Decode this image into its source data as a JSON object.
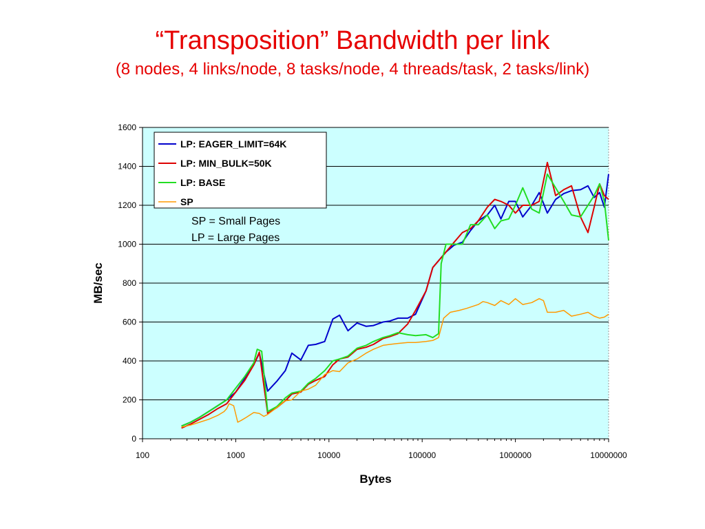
{
  "slide": {
    "title": "“Transposition” Bandwidth per link",
    "subtitle": "(8 nodes, 4 links/node, 8 tasks/node, 4 threads/task, 2 tasks/link)"
  },
  "chart_data": {
    "type": "line",
    "title": "",
    "xlabel": "Bytes",
    "ylabel": "MB/sec",
    "x_scale": "log",
    "xlim": [
      100,
      10000000
    ],
    "ylim": [
      0,
      1600
    ],
    "x_ticks": [
      "100",
      "1000",
      "10000",
      "100000",
      "1000000",
      "10000000"
    ],
    "y_ticks": [
      "0",
      "200",
      "400",
      "600",
      "800",
      "1000",
      "1200",
      "1400",
      "1600"
    ],
    "grid": "horizontal",
    "plot_background": "#ccffff",
    "legend_position": "top-left",
    "annotations": [
      "SP = Small Pages",
      "LP = Large Pages"
    ],
    "series": [
      {
        "name": "LP: EAGER_LIMIT=64K",
        "color": "#0000cc",
        "x": [
          262,
          327,
          409,
          512,
          640,
          800,
          1000,
          1250,
          1562,
          1792,
          2200,
          2750,
          3400,
          4000,
          5000,
          6000,
          7200,
          9000,
          11000,
          13000,
          16000,
          20000,
          25000,
          30000,
          38000,
          45000,
          55000,
          70000,
          85000,
          110000,
          130000,
          180000,
          220000,
          270000,
          330000,
          400000,
          500000,
          600000,
          700000,
          850000,
          1000000,
          1200000,
          1500000,
          1800000,
          2200000,
          2700000,
          3300000,
          4000000,
          5000000,
          6000000,
          7000000,
          8000000,
          9000000,
          10000000
        ],
        "y": [
          65,
          85,
          110,
          140,
          170,
          200,
          240,
          310,
          380,
          440,
          245,
          295,
          350,
          440,
          405,
          480,
          485,
          500,
          615,
          635,
          555,
          595,
          578,
          582,
          600,
          605,
          620,
          620,
          640,
          760,
          880,
          960,
          995,
          1010,
          1070,
          1120,
          1150,
          1200,
          1130,
          1220,
          1220,
          1140,
          1200,
          1265,
          1160,
          1230,
          1260,
          1275,
          1280,
          1300,
          1240,
          1265,
          1190,
          1360
        ]
      },
      {
        "name": "LP: MIN_BULK=50K",
        "color": "#dd0000",
        "x": [
          262,
          327,
          409,
          512,
          640,
          800,
          1000,
          1250,
          1562,
          1792,
          2200,
          2750,
          3400,
          4000,
          5000,
          6000,
          7200,
          9000,
          11000,
          13000,
          16000,
          20000,
          25000,
          30000,
          38000,
          45000,
          55000,
          70000,
          85000,
          110000,
          130000,
          180000,
          220000,
          270000,
          330000,
          400000,
          500000,
          600000,
          700000,
          850000,
          1000000,
          1200000,
          1500000,
          1800000,
          2200000,
          2700000,
          3300000,
          4000000,
          5000000,
          6000000,
          7000000,
          8000000,
          9000000,
          10000000
        ],
        "y": [
          55,
          75,
          100,
          125,
          155,
          180,
          240,
          300,
          380,
          445,
          130,
          160,
          195,
          230,
          240,
          280,
          300,
          320,
          380,
          410,
          420,
          460,
          470,
          485,
          515,
          525,
          540,
          590,
          660,
          760,
          880,
          960,
          1010,
          1060,
          1080,
          1120,
          1190,
          1230,
          1220,
          1200,
          1160,
          1200,
          1200,
          1220,
          1420,
          1250,
          1280,
          1300,
          1140,
          1060,
          1190,
          1310,
          1250,
          1230
        ]
      },
      {
        "name": "LP: BASE",
        "color": "#22dd22",
        "x": [
          262,
          327,
          409,
          512,
          640,
          800,
          1000,
          1250,
          1562,
          1700,
          1900,
          2200,
          2750,
          3400,
          4000,
          5000,
          6000,
          7200,
          9000,
          11000,
          13000,
          16000,
          20000,
          25000,
          30000,
          38000,
          45000,
          55000,
          70000,
          85000,
          110000,
          130000,
          150000,
          160000,
          180000,
          220000,
          270000,
          330000,
          400000,
          500000,
          600000,
          700000,
          850000,
          1000000,
          1200000,
          1500000,
          1800000,
          2200000,
          2700000,
          3300000,
          4000000,
          5000000,
          6000000,
          7000000,
          8000000,
          9000000,
          10000000
        ],
        "y": [
          65,
          85,
          110,
          140,
          170,
          200,
          260,
          320,
          390,
          460,
          450,
          140,
          165,
          210,
          235,
          245,
          285,
          310,
          350,
          400,
          410,
          425,
          465,
          480,
          500,
          520,
          530,
          545,
          535,
          530,
          535,
          520,
          540,
          900,
          1000,
          1000,
          1000,
          1100,
          1100,
          1150,
          1080,
          1120,
          1130,
          1200,
          1290,
          1180,
          1160,
          1360,
          1290,
          1220,
          1150,
          1140,
          1200,
          1250,
          1310,
          1220,
          1020
        ]
      },
      {
        "name": "SP",
        "color": "#ff9900",
        "x": [
          262,
          327,
          409,
          512,
          640,
          750,
          800,
          850,
          950,
          1050,
          1150,
          1300,
          1562,
          1792,
          2000,
          2200,
          2750,
          3400,
          4000,
          5000,
          6000,
          7200,
          9000,
          11000,
          13000,
          16000,
          20000,
          25000,
          30000,
          38000,
          45000,
          55000,
          70000,
          85000,
          110000,
          130000,
          150000,
          170000,
          200000,
          250000,
          300000,
          400000,
          450000,
          500000,
          600000,
          700000,
          850000,
          1000000,
          1200000,
          1500000,
          1800000,
          2000000,
          2200000,
          2700000,
          3300000,
          4000000,
          5000000,
          6000000,
          7000000,
          8000000,
          9000000,
          10000000
        ],
        "y": [
          60,
          70,
          85,
          100,
          120,
          140,
          155,
          180,
          170,
          85,
          95,
          110,
          135,
          130,
          115,
          125,
          160,
          195,
          200,
          245,
          255,
          275,
          330,
          350,
          345,
          390,
          410,
          440,
          460,
          480,
          485,
          490,
          495,
          495,
          500,
          505,
          520,
          620,
          650,
          660,
          670,
          690,
          705,
          700,
          685,
          710,
          690,
          720,
          690,
          700,
          720,
          710,
          650,
          650,
          660,
          630,
          640,
          650,
          630,
          620,
          625,
          640
        ]
      }
    ]
  }
}
